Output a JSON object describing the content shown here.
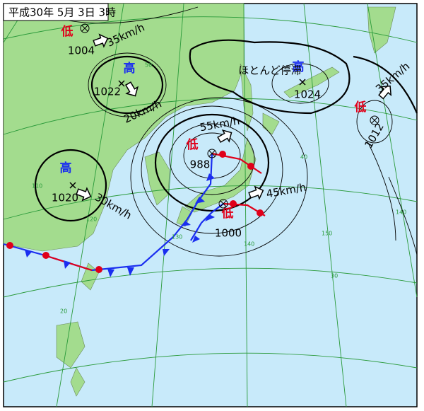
{
  "header": {
    "title": "平成30年 5月 3日 3時"
  },
  "systems": [
    {
      "kind": "低",
      "pressure": 1004,
      "speed": "35km/h"
    },
    {
      "kind": "高",
      "pressure": 1022,
      "speed": "20km/h"
    },
    {
      "kind": "高",
      "pressure": 1020,
      "speed": "30km/h"
    },
    {
      "kind": "低",
      "pressure": 988,
      "speed": "55km/h"
    },
    {
      "kind": "低",
      "pressure": 1000,
      "speed": "45km/h"
    },
    {
      "kind": "高",
      "pressure": 1024,
      "speed": "ほとんど停滞"
    },
    {
      "kind": "低",
      "pressure": 1012,
      "speed": "35km/h"
    }
  ],
  "grid_labels": [
    "50",
    "40",
    "30",
    "20",
    "110",
    "120",
    "130",
    "140",
    "150",
    "140"
  ]
}
